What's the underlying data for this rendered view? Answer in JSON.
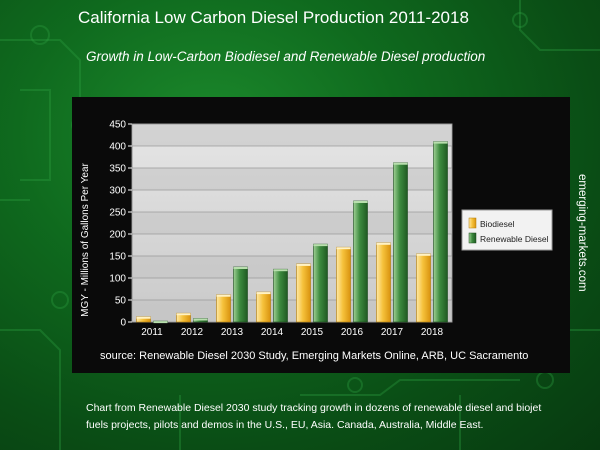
{
  "title": "California Low Carbon Diesel Production 2011-2018",
  "subtitle": "Growth in Low-Carbon Biodiesel and Renewable Diesel production",
  "source": "source: Renewable Diesel 2030 Study, Emerging Markets Online, ARB, UC Sacramento",
  "side_text": "emerging-markets.com",
  "description": "Chart from Renewable Diesel 2030 study tracking growth in dozens of renewable diesel and biojet fuels projects, pilots and demos in the U.S., EU, Asia. Canada, Australia, Middle East.",
  "colors": {
    "background": "#0f6a1e",
    "biodiesel": "#f2b423",
    "renewable": "#2f7a34",
    "plot_bg": "#d4d4d4"
  },
  "chart_data": {
    "type": "bar",
    "categories": [
      "2011",
      "2012",
      "2013",
      "2014",
      "2015",
      "2016",
      "2017",
      "2018"
    ],
    "series": [
      {
        "name": "Biodiesel",
        "values": [
          12,
          20,
          62,
          68,
          132,
          170,
          180,
          155
        ]
      },
      {
        "name": "Renewable Diesel",
        "values": [
          2,
          8,
          125,
          120,
          177,
          275,
          362,
          410
        ]
      }
    ],
    "title": "",
    "xlabel": "",
    "ylabel": "MGY - Millions of Gallons Per Year",
    "ylim": [
      0,
      450
    ],
    "yticks": [
      0,
      50,
      100,
      150,
      200,
      250,
      300,
      350,
      400,
      450
    ],
    "grid": true,
    "legend_position": "right"
  }
}
